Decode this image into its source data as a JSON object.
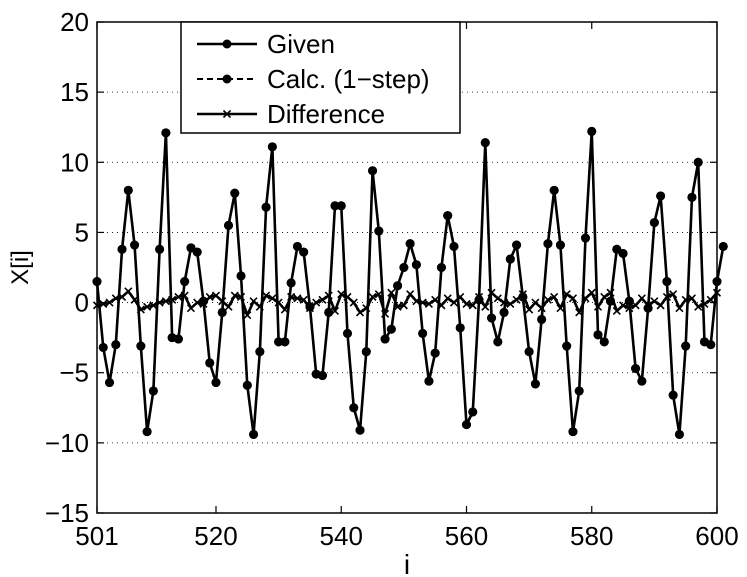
{
  "chart_data": {
    "type": "line",
    "title": "",
    "xlabel": "i",
    "ylabel": "X[i]",
    "xlim": [
      501,
      600
    ],
    "ylim": [
      -15,
      20
    ],
    "xticks": [
      501,
      520,
      540,
      560,
      580,
      600
    ],
    "yticks": [
      -15,
      -10,
      -5,
      0,
      5,
      10,
      15,
      20
    ],
    "grid": "dotted horizontal",
    "legend_position": "top-left",
    "x_start": 501,
    "series": [
      {
        "name": "Given",
        "style": "solid-circle",
        "values": [
          1.5,
          -3.2,
          -5.7,
          -3.0,
          3.8,
          8.0,
          4.1,
          -3.1,
          -9.2,
          -6.3,
          3.8,
          12.1,
          -2.5,
          -2.6,
          1.5,
          3.9,
          3.6,
          0.1,
          -4.3,
          -5.7,
          -0.7,
          5.5,
          7.8,
          1.9,
          -5.9,
          -9.4,
          -3.5,
          6.8,
          11.1,
          -2.8,
          -2.8,
          1.4,
          4.0,
          3.6,
          -0.3,
          -5.1,
          -5.2,
          -0.7,
          6.9,
          6.9,
          -2.2,
          -7.5,
          -9.1,
          -3.5,
          9.4,
          5.1,
          -2.6,
          -1.9,
          1.2,
          2.5,
          4.2,
          2.7,
          -2.2,
          -5.6,
          -3.6,
          2.5,
          6.2,
          4.0,
          -1.8,
          -8.7,
          -7.8,
          0.2,
          11.4,
          -1.1,
          -2.8,
          -0.7,
          3.1,
          4.1,
          0.4,
          -3.5,
          -5.8,
          -1.2,
          4.2,
          8.0,
          4.1,
          -3.1,
          -9.2,
          -6.3,
          4.6,
          12.2,
          -2.3,
          -2.8,
          0.1,
          3.8,
          3.5,
          0.1,
          -4.7,
          -5.6,
          -0.4,
          5.7,
          7.6,
          1.5,
          -6.6,
          -9.4,
          -3.1,
          7.5,
          10.0,
          -2.8,
          -3.0,
          1.5,
          4.0
        ],
        "color": "#000000"
      },
      {
        "name": "Calc. (1−step)",
        "style": "dashed-circle",
        "values": [
          1.5,
          -3.2,
          -5.7,
          -3.0,
          3.8,
          8.0,
          4.1,
          -3.1,
          -9.2,
          -6.3,
          3.8,
          12.1,
          -2.5,
          -2.6,
          1.5,
          3.9,
          3.6,
          0.1,
          -4.3,
          -5.7,
          -0.7,
          5.5,
          7.8,
          1.9,
          -5.9,
          -9.4,
          -3.5,
          6.8,
          11.1,
          -2.8,
          -2.8,
          1.4,
          4.0,
          3.6,
          -0.3,
          -5.1,
          -5.2,
          -0.7,
          6.9,
          6.9,
          -2.2,
          -7.5,
          -9.1,
          -3.5,
          9.4,
          5.1,
          -2.6,
          -1.9,
          1.2,
          2.5,
          4.2,
          2.7,
          -2.2,
          -5.6,
          -3.6,
          2.5,
          6.2,
          4.0,
          -1.8,
          -8.7,
          -7.8,
          0.2,
          11.4,
          -1.1,
          -2.8,
          -0.7,
          3.1,
          4.1,
          0.4,
          -3.5,
          -5.8,
          -1.2,
          4.2,
          8.0,
          4.1,
          -3.1,
          -9.2,
          -6.3,
          4.6,
          12.2,
          -2.3,
          -2.8,
          0.1,
          3.8,
          3.5,
          0.1,
          -4.7,
          -5.6,
          -0.4,
          5.7,
          7.6,
          1.5,
          -6.6,
          -9.4,
          -3.1,
          7.5,
          10.0,
          -2.8,
          -3.0,
          1.5,
          4.0
        ],
        "color": "#000000"
      },
      {
        "name": "Difference",
        "style": "solid-x",
        "values": [
          -0.2,
          -0.1,
          0.0,
          0.3,
          0.4,
          0.8,
          0.2,
          -0.5,
          -0.3,
          -0.2,
          0.0,
          0.1,
          0.2,
          0.4,
          0.5,
          -0.4,
          0.0,
          -0.1,
          0.4,
          0.5,
          0.1,
          -0.3,
          0.5,
          0.4,
          -0.9,
          0.1,
          -0.3,
          0.5,
          0.3,
          0.0,
          -0.5,
          0.4,
          0.3,
          0.2,
          -0.4,
          0.0,
          0.2,
          0.5,
          -0.6,
          0.6,
          0.4,
          0.0,
          -0.7,
          -0.4,
          0.4,
          0.6,
          -0.8,
          0.7,
          -0.3,
          -0.2,
          0.6,
          0.1,
          0.0,
          -0.1,
          0.2,
          -0.2,
          0.3,
          0.0,
          0.4,
          -0.1,
          -0.2,
          0.4,
          -0.3,
          0.7,
          0.3,
          0.0,
          -0.1,
          0.2,
          0.6,
          -0.5,
          0.0,
          -0.4,
          0.2,
          0.4,
          -0.4,
          0.6,
          0.3,
          -0.7,
          0.3,
          0.7,
          -0.3,
          0.4,
          0.7,
          -0.6,
          -0.2,
          -0.4,
          -0.2,
          0.3,
          -0.2,
          0.1,
          -0.2,
          0.4,
          0.6,
          -0.4,
          0.2,
          0.3,
          -0.3,
          -0.1,
          0.2,
          0.7
        ],
        "color": "#000000"
      }
    ]
  }
}
